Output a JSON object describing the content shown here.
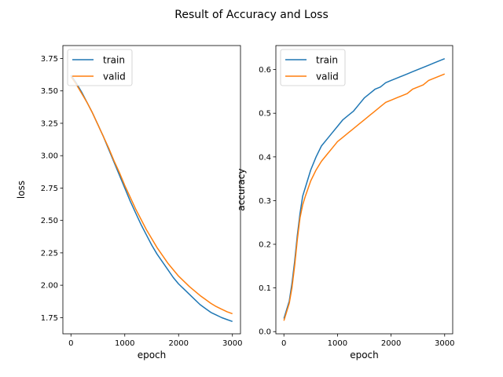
{
  "figure": {
    "title": "Result of Accuracy and Loss"
  },
  "chart_data": [
    {
      "type": "line",
      "xlabel": "epoch",
      "ylabel": "loss",
      "xlim": [
        -150,
        3150
      ],
      "ylim": [
        1.625,
        3.85
      ],
      "xticks": [
        0,
        1000,
        2000,
        3000
      ],
      "yticks": [
        1.75,
        2.0,
        2.25,
        2.5,
        2.75,
        3.0,
        3.25,
        3.5,
        3.75
      ],
      "ytick_decimals": 2,
      "grid": false,
      "legend": "upper left",
      "series": [
        {
          "name": "train",
          "color": "#1f77b4",
          "x": [
            0,
            100,
            200,
            300,
            400,
            500,
            600,
            700,
            800,
            900,
            1000,
            1100,
            1200,
            1300,
            1400,
            1500,
            1600,
            1700,
            1800,
            1900,
            2000,
            2100,
            2200,
            2300,
            2400,
            2500,
            2600,
            2700,
            2800,
            2900,
            3000
          ],
          "values": [
            3.62,
            3.56,
            3.49,
            3.41,
            3.33,
            3.24,
            3.15,
            3.05,
            2.95,
            2.85,
            2.75,
            2.65,
            2.56,
            2.47,
            2.39,
            2.31,
            2.24,
            2.18,
            2.12,
            2.06,
            2.01,
            1.97,
            1.93,
            1.89,
            1.85,
            1.82,
            1.79,
            1.77,
            1.75,
            1.735,
            1.72
          ]
        },
        {
          "name": "valid",
          "color": "#ff7f0e",
          "x": [
            0,
            100,
            200,
            300,
            400,
            500,
            600,
            700,
            800,
            900,
            1000,
            1100,
            1200,
            1300,
            1400,
            1500,
            1600,
            1700,
            1800,
            1900,
            2000,
            2100,
            2200,
            2300,
            2400,
            2500,
            2600,
            2700,
            2800,
            2900,
            3000
          ],
          "values": [
            3.61,
            3.55,
            3.48,
            3.41,
            3.33,
            3.24,
            3.15,
            3.06,
            2.96,
            2.87,
            2.77,
            2.68,
            2.59,
            2.51,
            2.43,
            2.36,
            2.29,
            2.23,
            2.17,
            2.12,
            2.07,
            2.03,
            1.99,
            1.955,
            1.92,
            1.89,
            1.86,
            1.835,
            1.815,
            1.795,
            1.78
          ]
        }
      ]
    },
    {
      "type": "line",
      "xlabel": "epoch",
      "ylabel": "accuracy",
      "xlim": [
        -150,
        3150
      ],
      "ylim": [
        -0.005,
        0.655
      ],
      "xticks": [
        0,
        1000,
        2000,
        3000
      ],
      "yticks": [
        0.0,
        0.1,
        0.2,
        0.3,
        0.4,
        0.5,
        0.6
      ],
      "ytick_decimals": 1,
      "grid": false,
      "legend": "upper left",
      "series": [
        {
          "name": "train",
          "color": "#1f77b4",
          "x": [
            0,
            50,
            100,
            150,
            200,
            250,
            300,
            350,
            400,
            500,
            600,
            700,
            800,
            900,
            1000,
            1100,
            1200,
            1300,
            1400,
            1500,
            1600,
            1700,
            1800,
            1900,
            2000,
            2100,
            2200,
            2300,
            2400,
            2500,
            2600,
            2700,
            2800,
            2900,
            3000
          ],
          "values": [
            0.03,
            0.05,
            0.07,
            0.11,
            0.16,
            0.22,
            0.27,
            0.31,
            0.33,
            0.37,
            0.4,
            0.425,
            0.44,
            0.455,
            0.47,
            0.485,
            0.495,
            0.505,
            0.52,
            0.535,
            0.545,
            0.555,
            0.56,
            0.57,
            0.575,
            0.58,
            0.585,
            0.59,
            0.595,
            0.6,
            0.605,
            0.61,
            0.615,
            0.62,
            0.625
          ]
        },
        {
          "name": "valid",
          "color": "#ff7f0e",
          "x": [
            0,
            50,
            100,
            150,
            200,
            250,
            300,
            350,
            400,
            500,
            600,
            700,
            800,
            900,
            1000,
            1100,
            1200,
            1300,
            1400,
            1500,
            1600,
            1700,
            1800,
            1900,
            2000,
            2100,
            2200,
            2300,
            2400,
            2500,
            2600,
            2700,
            2800,
            2900,
            3000
          ],
          "values": [
            0.025,
            0.045,
            0.065,
            0.1,
            0.15,
            0.21,
            0.26,
            0.29,
            0.31,
            0.345,
            0.37,
            0.39,
            0.405,
            0.42,
            0.435,
            0.445,
            0.455,
            0.465,
            0.475,
            0.485,
            0.495,
            0.505,
            0.515,
            0.525,
            0.53,
            0.535,
            0.54,
            0.545,
            0.555,
            0.56,
            0.565,
            0.575,
            0.58,
            0.585,
            0.59
          ]
        }
      ]
    }
  ]
}
